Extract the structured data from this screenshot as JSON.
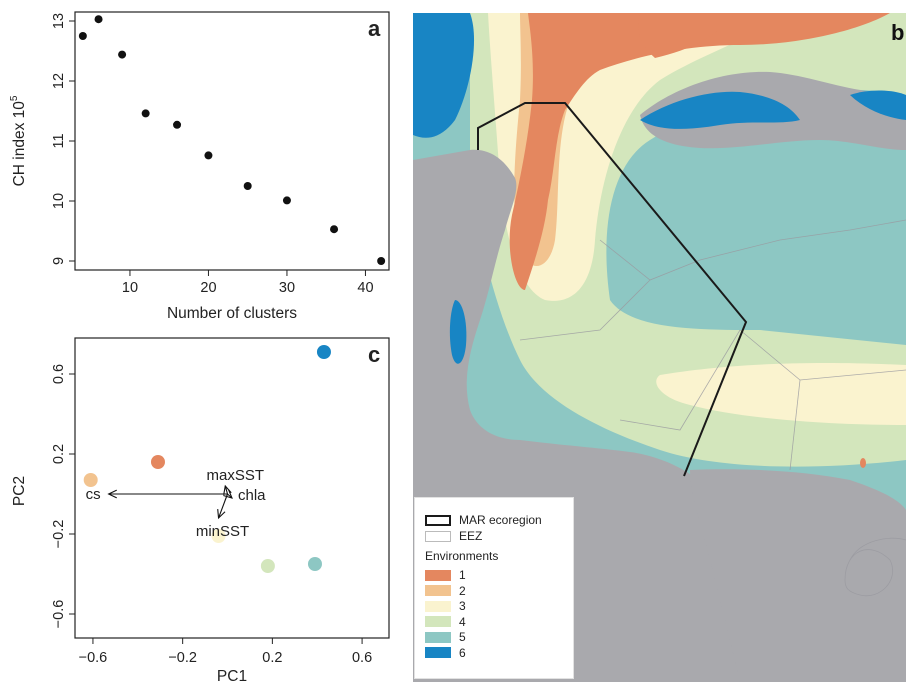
{
  "chart_data": [
    {
      "panel": "a",
      "type": "scatter",
      "xlabel": "Number of clusters",
      "ylabel": "CH index 10",
      "ylabel_exponent": "5",
      "xlim": [
        3,
        43
      ],
      "ylim": [
        8.85,
        13.15
      ],
      "xticks": [
        "10",
        "20",
        "30",
        "40"
      ],
      "yticks": [
        "9",
        "10",
        "11",
        "12",
        "13"
      ],
      "x": [
        4,
        6,
        9,
        12,
        16,
        20,
        25,
        30,
        36,
        42
      ],
      "y": [
        12.75,
        13.03,
        12.44,
        11.46,
        11.27,
        10.76,
        10.25,
        10.01,
        9.53,
        9.0
      ],
      "point_color": "#111111"
    },
    {
      "panel": "c",
      "type": "scatter",
      "xlabel": "PC1",
      "ylabel": "PC2",
      "xlim": [
        -0.68,
        0.72
      ],
      "ylim": [
        -0.72,
        0.78
      ],
      "xticks": [
        "-0.6",
        "-0.2",
        "0.2",
        "0.6"
      ],
      "yticks": [
        "-0.6",
        "-0.2",
        "0.2",
        "0.6"
      ],
      "points": [
        {
          "x": -0.61,
          "y": 0.07,
          "color": "#F2C38F"
        },
        {
          "x": -0.31,
          "y": 0.16,
          "color": "#E4875F"
        },
        {
          "x": -0.04,
          "y": -0.21,
          "color": "#FAF3CF"
        },
        {
          "x": 0.18,
          "y": -0.36,
          "color": "#D3E6BC"
        },
        {
          "x": 0.39,
          "y": -0.35,
          "color": "#8DC7C3"
        },
        {
          "x": 0.43,
          "y": 0.71,
          "color": "#1885C4"
        }
      ],
      "vectors": [
        {
          "label": "cs",
          "x": -0.53,
          "y": 0.0
        },
        {
          "label": "maxSST",
          "x": -0.01,
          "y": 0.04
        },
        {
          "label": "chla",
          "x": 0.02,
          "y": -0.02
        },
        {
          "label": "minSST",
          "x": -0.04,
          "y": -0.12
        }
      ]
    }
  ],
  "panel_b": {
    "letter": "b",
    "legend": {
      "mar_label": "MAR ecoregion",
      "eez_label": "EEZ",
      "env_title": "Environments",
      "envs": [
        {
          "label": "1",
          "color": "#E4875F"
        },
        {
          "label": "2",
          "color": "#F2C38F"
        },
        {
          "label": "3",
          "color": "#FAF3CF"
        },
        {
          "label": "4",
          "color": "#D3E6BC"
        },
        {
          "label": "5",
          "color": "#8DC7C3"
        },
        {
          "label": "6",
          "color": "#1885C4"
        }
      ]
    },
    "colors": {
      "land": "#A9A9AD",
      "deep_blue": "#1885C4"
    }
  },
  "letters": {
    "a": "a",
    "c": "c"
  }
}
